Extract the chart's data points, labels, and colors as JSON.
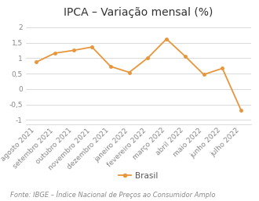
{
  "title": "IPCA – Variação mensal (%)",
  "categories": [
    "agosto 2021",
    "setembro 2021",
    "outubro 2021",
    "novembro 2021",
    "dezembro 2021",
    "janeiro 2022",
    "fevereiro 2022",
    "março 2022",
    "abril 2022",
    "maio 2022",
    "junho 2022",
    "julho 2022"
  ],
  "values": [
    0.87,
    1.16,
    1.25,
    1.36,
    0.73,
    0.54,
    1.01,
    1.62,
    1.06,
    0.47,
    0.67,
    -0.68
  ],
  "line_color": "#e8963c",
  "legend_label": "Brasil",
  "yticks": [
    -1,
    -0.5,
    0,
    0.5,
    1,
    1.5,
    2
  ],
  "ylim": [
    -1.15,
    2.1
  ],
  "source_text": "Fonte: IBGE – Índice Nacional de Preços ao Consumidor Amplo",
  "background_color": "#ffffff",
  "grid_color": "#cccccc",
  "title_fontsize": 10,
  "label_fontsize": 6.5,
  "source_fontsize": 6,
  "legend_fontsize": 7.5
}
